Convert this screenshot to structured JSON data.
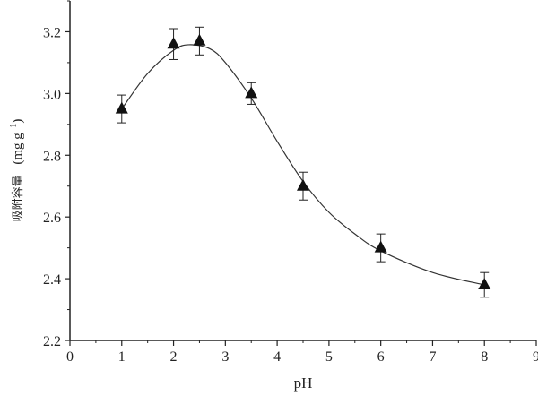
{
  "chart_data": {
    "type": "scatter",
    "title": "",
    "xlabel": "pH",
    "ylabel": "吸附容量",
    "ylabel_unit": "(mg g",
    "ylabel_unit_sup": "−1",
    "ylabel_unit_close": ")",
    "xlim": [
      0,
      9
    ],
    "ylim": [
      2.2,
      3.3
    ],
    "xticks": [
      "0",
      "1",
      "2",
      "3",
      "4",
      "5",
      "6",
      "7",
      "8",
      "9"
    ],
    "yticks": [
      "2.2",
      "2.4",
      "2.6",
      "2.8",
      "3.0",
      "3.2"
    ],
    "grid": false,
    "marker": "filled-triangle",
    "points": [
      {
        "x": 1,
        "y": 2.95,
        "err": 0.045
      },
      {
        "x": 2,
        "y": 3.16,
        "err": 0.05
      },
      {
        "x": 2.5,
        "y": 3.17,
        "err": 0.045
      },
      {
        "x": 3.5,
        "y": 3.0,
        "err": 0.035
      },
      {
        "x": 4.5,
        "y": 2.7,
        "err": 0.045
      },
      {
        "x": 6,
        "y": 2.5,
        "err": 0.045
      },
      {
        "x": 8,
        "y": 2.38,
        "err": 0.04
      }
    ],
    "fit_curve": [
      [
        1,
        2.95
      ],
      [
        1.5,
        3.065
      ],
      [
        2,
        3.14
      ],
      [
        2.3,
        3.158
      ],
      [
        2.7,
        3.145
      ],
      [
        3,
        3.1
      ],
      [
        3.5,
        2.985
      ],
      [
        4,
        2.845
      ],
      [
        4.5,
        2.715
      ],
      [
        5,
        2.615
      ],
      [
        5.5,
        2.545
      ],
      [
        6,
        2.49
      ],
      [
        7,
        2.42
      ],
      [
        8,
        2.38
      ]
    ],
    "colors": {
      "marker": "#111111",
      "line": "#333333",
      "axis": "#222222"
    }
  }
}
